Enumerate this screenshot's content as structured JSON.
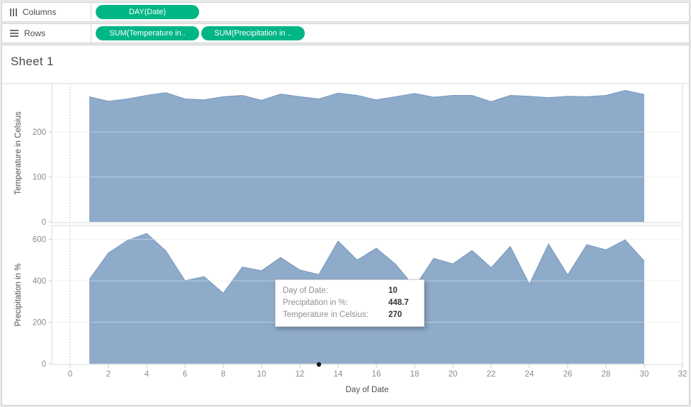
{
  "shelves": {
    "columns": {
      "label": "Columns",
      "pills": [
        "DAY(Date)"
      ]
    },
    "rows": {
      "label": "Rows",
      "pills": [
        "SUM(Temperature in..",
        "SUM(Precipitation in .."
      ]
    }
  },
  "sheet": {
    "title": "Sheet 1"
  },
  "chart_data": {
    "type": "area",
    "xlabel": "Day of Date",
    "x_range": [
      0,
      32
    ],
    "x_ticks": [
      0,
      2,
      4,
      6,
      8,
      10,
      12,
      14,
      16,
      18,
      20,
      22,
      24,
      26,
      28,
      30,
      32
    ],
    "days": [
      1,
      2,
      3,
      4,
      5,
      6,
      7,
      8,
      9,
      10,
      11,
      12,
      13,
      14,
      15,
      16,
      17,
      18,
      19,
      20,
      21,
      22,
      23,
      24,
      25,
      26,
      27,
      28,
      29,
      30
    ],
    "panes": [
      {
        "id": "temperature",
        "title": "Temperature in Celsius",
        "y_ticks": [
          0,
          100,
          200
        ],
        "y_range": [
          0,
          309
        ],
        "values": [
          278,
          268,
          273,
          281,
          287,
          273,
          271,
          278,
          281,
          270,
          284,
          278,
          273,
          286,
          281,
          271,
          278,
          285,
          277,
          281,
          281,
          267,
          281,
          279,
          276,
          279,
          278,
          281,
          292,
          283
        ]
      },
      {
        "id": "precipitation",
        "title": "Precipitation in %",
        "y_ticks": [
          0,
          200,
          400,
          600
        ],
        "y_range": [
          0,
          668
        ],
        "values": [
          406,
          534,
          595,
          628,
          544,
          400,
          420,
          340,
          466,
          448.7,
          512,
          452,
          430,
          591,
          500,
          557,
          480,
          369,
          508,
          481,
          546,
          463,
          565,
          383,
          577,
          428,
          574,
          549,
          597,
          495
        ]
      }
    ],
    "grid": true,
    "legend": "none",
    "colors": {
      "area": "#8fabca",
      "area_edge": "#7d9cc2",
      "gridline": "#e7e7e7",
      "pill_green": "#00b586"
    },
    "marker_day": 13
  },
  "tooltip": {
    "rows": [
      {
        "label": "Day of Date:",
        "value": "10"
      },
      {
        "label": "Precipitation in %:",
        "value": "448.7"
      },
      {
        "label": "Temperature in Celsius:",
        "value": "270"
      }
    ]
  }
}
